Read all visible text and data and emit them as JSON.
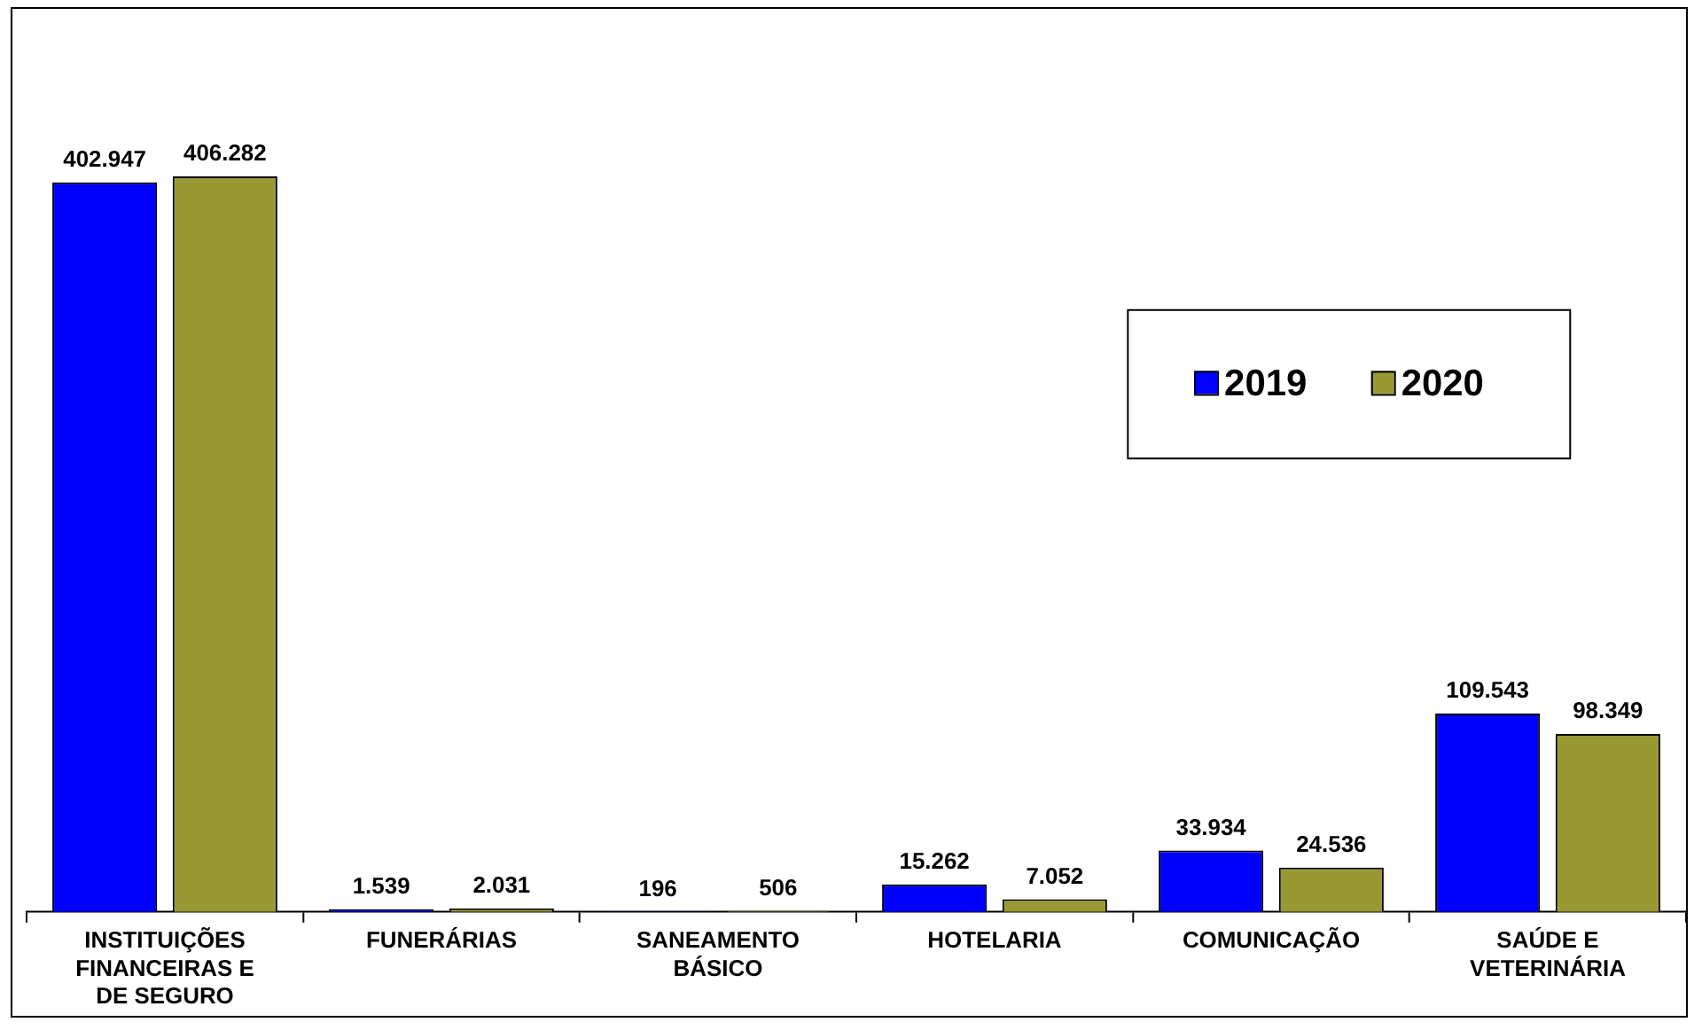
{
  "chart_data": {
    "type": "bar",
    "categories": [
      "INSTITUIÇÕES FINANCEIRAS E DE SEGURO",
      "FUNERÁRIAS",
      "SANEAMENTO BÁSICO",
      "HOTELARIA",
      "COMUNICAÇÃO",
      "SAÚDE E VETERINÁRIA"
    ],
    "series": [
      {
        "name": "2019",
        "color": "#0000ff",
        "values": [
          402947,
          1539,
          196,
          15262,
          33934,
          109543
        ],
        "value_labels": [
          "402.947",
          "1.539",
          "196",
          "15.262",
          "33.934",
          "109.543"
        ]
      },
      {
        "name": "2020",
        "color": "#999933",
        "values": [
          406282,
          2031,
          506,
          7052,
          24536,
          98349
        ],
        "value_labels": [
          "406.282",
          "2.031",
          "506",
          "7.052",
          "24.536",
          "98.349"
        ]
      }
    ],
    "relative": false,
    "legend": "top right",
    "grid": false
  }
}
